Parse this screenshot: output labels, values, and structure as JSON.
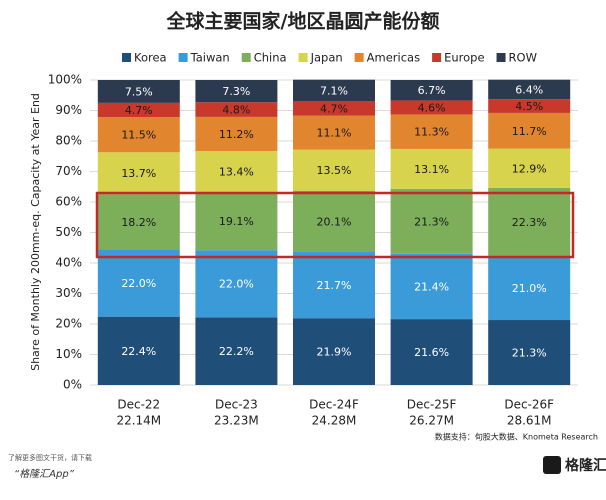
{
  "chart_data": {
    "type": "stacked_bar",
    "title": "全球主要国家/地区晶圆产能份额",
    "y_label": "Share of Monthly 200mm-eq. Capacity at Year End",
    "categories": [
      "Dec-22",
      "Dec-23",
      "Dec-24F",
      "Dec-25F",
      "Dec-26F"
    ],
    "category_sublabels": [
      "22.14M",
      "23.23M",
      "24.28M",
      "26.27M",
      "28.61M"
    ],
    "ylim": [
      0,
      100
    ],
    "yticks": [
      {
        "value": 0,
        "label": "0%"
      },
      {
        "value": 10,
        "label": "10%"
      },
      {
        "value": 20,
        "label": "20%"
      },
      {
        "value": 30,
        "label": "30%"
      },
      {
        "value": 40,
        "label": "40%"
      },
      {
        "value": 50,
        "label": "50%"
      },
      {
        "value": 60,
        "label": "60%"
      },
      {
        "value": 70,
        "label": "70%"
      },
      {
        "value": 80,
        "label": "80%"
      },
      {
        "value": 90,
        "label": "90%"
      },
      {
        "value": 100,
        "label": "100%"
      }
    ],
    "grid": true,
    "series": [
      {
        "name": "Korea",
        "color": "#1f4e79",
        "label_color": "#ffffff",
        "values": [
          22.4,
          22.2,
          21.9,
          21.6,
          21.3
        ],
        "value_labels": [
          "22.4%",
          "22.2%",
          "21.9%",
          "21.6%",
          "21.3%"
        ]
      },
      {
        "name": "Taiwan",
        "color": "#3b9bd8",
        "label_color": "#ffffff",
        "values": [
          22.0,
          22.0,
          21.7,
          21.4,
          21.0
        ],
        "value_labels": [
          "22.0%",
          "22.0%",
          "21.7%",
          "21.4%",
          "21.0%"
        ]
      },
      {
        "name": "China",
        "color": "#7daf5b",
        "label_color": "#1a1a1a",
        "values": [
          18.2,
          19.1,
          20.1,
          21.3,
          22.3
        ],
        "value_labels": [
          "18.2%",
          "19.1%",
          "20.1%",
          "21.3%",
          "22.3%"
        ]
      },
      {
        "name": "Japan",
        "color": "#d7d34c",
        "label_color": "#1a1a1a",
        "values": [
          13.7,
          13.4,
          13.5,
          13.1,
          12.9
        ],
        "value_labels": [
          "13.7%",
          "13.4%",
          "13.5%",
          "13.1%",
          "12.9%"
        ]
      },
      {
        "name": "Americas",
        "color": "#e2852f",
        "label_color": "#1a1a1a",
        "values": [
          11.5,
          11.2,
          11.1,
          11.3,
          11.7
        ],
        "value_labels": [
          "11.5%",
          "11.2%",
          "11.1%",
          "11.3%",
          "11.7%"
        ]
      },
      {
        "name": "Europe",
        "color": "#c9392b",
        "label_color": "#1a1a1a",
        "values": [
          4.7,
          4.8,
          4.7,
          4.6,
          4.5
        ],
        "value_labels": [
          "4.7%",
          "4.8%",
          "4.7%",
          "4.6%",
          "4.5%"
        ]
      },
      {
        "name": "ROW",
        "color": "#2b3a4e",
        "label_color": "#ffffff",
        "values": [
          7.5,
          7.3,
          7.1,
          6.7,
          6.4
        ],
        "value_labels": [
          "7.5%",
          "7.3%",
          "7.1%",
          "6.7%",
          "6.4%"
        ]
      }
    ],
    "source": "数据支持：旬股大数据、Knometa Research"
  },
  "footer": {
    "line1": "了解更多图文干货，请下载",
    "line2": "“格隆汇App”",
    "logo": "格隆汇"
  }
}
